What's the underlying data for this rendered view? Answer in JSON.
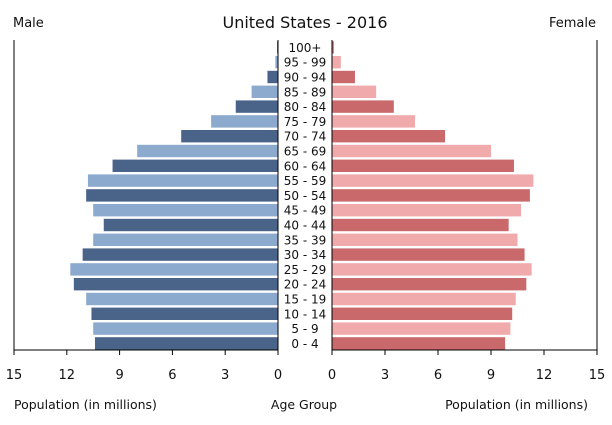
{
  "chart_data": {
    "type": "bar",
    "orientation": "horizontal-pyramid",
    "title": "United States - 2016",
    "left_label": "Male",
    "right_label": "Female",
    "center_xlabel": "Age Group",
    "left_xlabel": "Population (in millions)",
    "right_xlabel": "Population (in millions)",
    "xlim": [
      0,
      15
    ],
    "ticks": [
      15,
      12,
      9,
      6,
      3,
      0
    ],
    "right_ticks": [
      0,
      3,
      6,
      9,
      12,
      15
    ],
    "categories": [
      "100+",
      "95 - 99",
      "90 - 94",
      "85 - 89",
      "80 - 84",
      "75 - 79",
      "70 - 74",
      "65 - 69",
      "60 - 64",
      "55 - 59",
      "50 - 54",
      "45 - 49",
      "40 - 44",
      "35 - 39",
      "30 - 34",
      "25 - 29",
      "20 - 24",
      "15 - 19",
      "10 - 14",
      "5 - 9",
      "0 - 4"
    ],
    "series": [
      {
        "name": "Male",
        "values": [
          0.05,
          0.15,
          0.6,
          1.5,
          2.4,
          3.8,
          5.5,
          8.0,
          9.4,
          10.8,
          10.9,
          10.5,
          9.9,
          10.5,
          11.1,
          11.8,
          11.6,
          10.9,
          10.6,
          10.5,
          10.4
        ]
      },
      {
        "name": "Female",
        "values": [
          0.1,
          0.5,
          1.3,
          2.5,
          3.5,
          4.7,
          6.4,
          9.0,
          10.3,
          11.4,
          11.2,
          10.7,
          10.0,
          10.5,
          10.9,
          11.3,
          11.0,
          10.4,
          10.2,
          10.1,
          9.8
        ]
      }
    ],
    "colors": {
      "male_dark": "#4a6389",
      "male_light": "#8caacd",
      "female_dark": "#c9696b",
      "female_light": "#f0aaab",
      "axis": "#000000"
    }
  }
}
